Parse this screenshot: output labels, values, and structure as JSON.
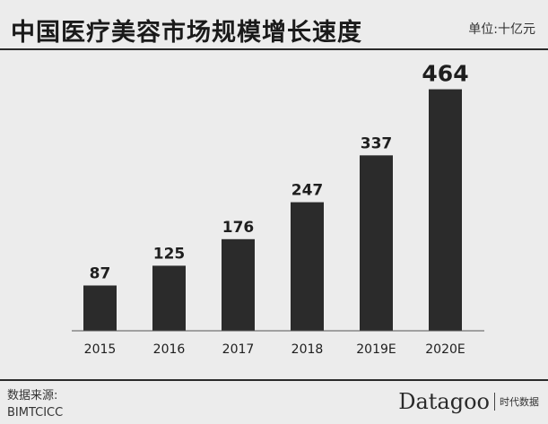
{
  "header": {
    "title": "中国医疗美容市场规模增长速度",
    "unit": "单位:十亿元"
  },
  "footer": {
    "source_label": "数据来源:",
    "source_name": "BIMTCICC",
    "brand_name": "Datagoo",
    "brand_sub": "时代数据"
  },
  "colors": {
    "bar": "#2b2b2b",
    "background": "#ececec",
    "text": "#1e1e1e"
  },
  "chart_data": {
    "type": "bar",
    "title": "中国医疗美容市场规模增长速度",
    "xlabel": "",
    "ylabel": "",
    "categories": [
      "2015",
      "2016",
      "2017",
      "2018",
      "2019E",
      "2020E"
    ],
    "values": [
      87,
      125,
      176,
      247,
      337,
      464
    ],
    "ylim": [
      0,
      500
    ],
    "grid": false,
    "legend": "none",
    "data_labels": true
  }
}
